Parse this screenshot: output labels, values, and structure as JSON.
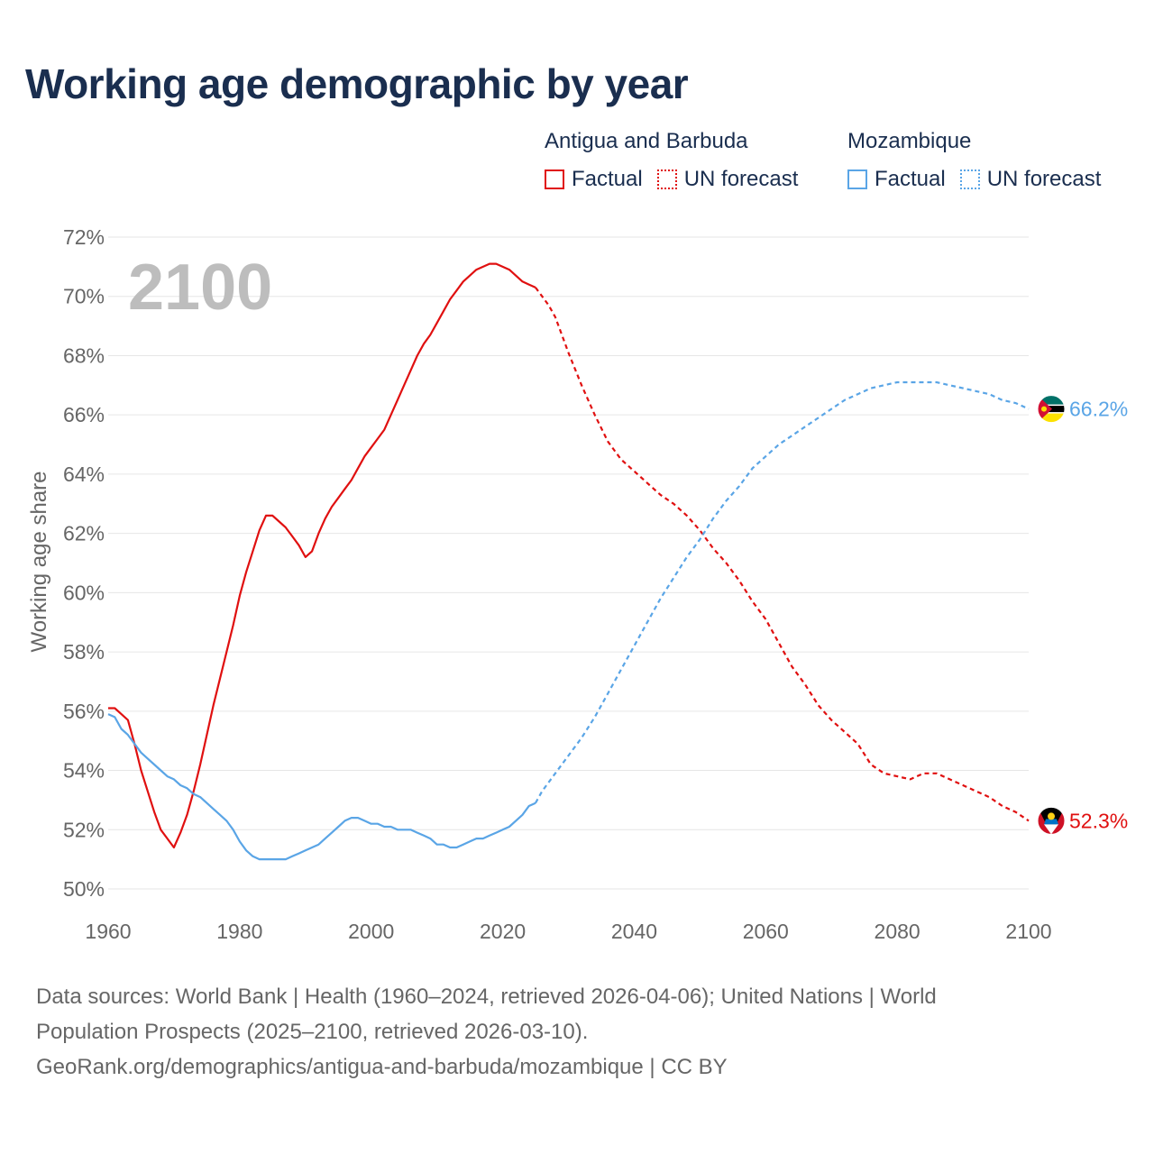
{
  "title": "Working age demographic by year",
  "legend": {
    "groups": [
      {
        "name": "Antigua and Barbuda",
        "color": "#e01010",
        "items": [
          {
            "label": "Factual",
            "style": "solid"
          },
          {
            "label": "UN forecast",
            "style": "dotted"
          }
        ]
      },
      {
        "name": "Mozambique",
        "color": "#5aa5e6",
        "items": [
          {
            "label": "Factual",
            "style": "solid"
          },
          {
            "label": "UN forecast",
            "style": "dotted"
          }
        ]
      }
    ]
  },
  "chart_data": {
    "type": "line",
    "title": "Working age demographic by year",
    "year_label": "2100",
    "xlabel": "",
    "ylabel": "Working age share",
    "xlim": [
      1960,
      2100
    ],
    "ylim": [
      50,
      72
    ],
    "xticks": [
      1960,
      1980,
      2000,
      2020,
      2040,
      2060,
      2080,
      2100
    ],
    "yticks": [
      50,
      52,
      54,
      56,
      58,
      60,
      62,
      64,
      66,
      68,
      70,
      72
    ],
    "ytick_suffix": "%",
    "grid": true,
    "forecast_start": 2025,
    "series": [
      {
        "name": "Antigua and Barbuda",
        "color": "#e01010",
        "end_label": "52.3%",
        "points": [
          [
            1960,
            56.1
          ],
          [
            1961,
            56.1
          ],
          [
            1962,
            55.9
          ],
          [
            1963,
            55.7
          ],
          [
            1964,
            54.9
          ],
          [
            1965,
            54.0
          ],
          [
            1966,
            53.3
          ],
          [
            1967,
            52.6
          ],
          [
            1968,
            52.0
          ],
          [
            1969,
            51.7
          ],
          [
            1970,
            51.4
          ],
          [
            1971,
            51.9
          ],
          [
            1972,
            52.5
          ],
          [
            1973,
            53.3
          ],
          [
            1974,
            54.2
          ],
          [
            1975,
            55.2
          ],
          [
            1976,
            56.2
          ],
          [
            1977,
            57.1
          ],
          [
            1978,
            58.0
          ],
          [
            1979,
            58.9
          ],
          [
            1980,
            59.9
          ],
          [
            1981,
            60.7
          ],
          [
            1982,
            61.4
          ],
          [
            1983,
            62.1
          ],
          [
            1984,
            62.6
          ],
          [
            1985,
            62.6
          ],
          [
            1986,
            62.4
          ],
          [
            1987,
            62.2
          ],
          [
            1988,
            61.9
          ],
          [
            1989,
            61.6
          ],
          [
            1990,
            61.2
          ],
          [
            1991,
            61.4
          ],
          [
            1992,
            62.0
          ],
          [
            1993,
            62.5
          ],
          [
            1994,
            62.9
          ],
          [
            1995,
            63.2
          ],
          [
            1996,
            63.5
          ],
          [
            1997,
            63.8
          ],
          [
            1998,
            64.2
          ],
          [
            1999,
            64.6
          ],
          [
            2000,
            64.9
          ],
          [
            2001,
            65.2
          ],
          [
            2002,
            65.5
          ],
          [
            2003,
            66.0
          ],
          [
            2004,
            66.5
          ],
          [
            2005,
            67.0
          ],
          [
            2006,
            67.5
          ],
          [
            2007,
            68.0
          ],
          [
            2008,
            68.4
          ],
          [
            2009,
            68.7
          ],
          [
            2010,
            69.1
          ],
          [
            2011,
            69.5
          ],
          [
            2012,
            69.9
          ],
          [
            2013,
            70.2
          ],
          [
            2014,
            70.5
          ],
          [
            2015,
            70.7
          ],
          [
            2016,
            70.9
          ],
          [
            2017,
            71.0
          ],
          [
            2018,
            71.1
          ],
          [
            2019,
            71.1
          ],
          [
            2020,
            71.0
          ],
          [
            2021,
            70.9
          ],
          [
            2022,
            70.7
          ],
          [
            2023,
            70.5
          ],
          [
            2024,
            70.4
          ],
          [
            2025,
            70.3
          ],
          [
            2026,
            70.0
          ],
          [
            2027,
            69.7
          ],
          [
            2028,
            69.3
          ],
          [
            2029,
            68.7
          ],
          [
            2030,
            68.1
          ],
          [
            2032,
            67.0
          ],
          [
            2034,
            66.0
          ],
          [
            2036,
            65.1
          ],
          [
            2038,
            64.5
          ],
          [
            2040,
            64.1
          ],
          [
            2042,
            63.7
          ],
          [
            2044,
            63.3
          ],
          [
            2046,
            63.0
          ],
          [
            2048,
            62.6
          ],
          [
            2050,
            62.1
          ],
          [
            2052,
            61.5
          ],
          [
            2054,
            61.0
          ],
          [
            2056,
            60.4
          ],
          [
            2058,
            59.7
          ],
          [
            2060,
            59.1
          ],
          [
            2062,
            58.3
          ],
          [
            2064,
            57.5
          ],
          [
            2066,
            56.9
          ],
          [
            2068,
            56.2
          ],
          [
            2070,
            55.7
          ],
          [
            2072,
            55.3
          ],
          [
            2074,
            54.9
          ],
          [
            2076,
            54.2
          ],
          [
            2078,
            53.9
          ],
          [
            2080,
            53.8
          ],
          [
            2082,
            53.7
          ],
          [
            2084,
            53.9
          ],
          [
            2086,
            53.9
          ],
          [
            2088,
            53.7
          ],
          [
            2090,
            53.5
          ],
          [
            2092,
            53.3
          ],
          [
            2094,
            53.1
          ],
          [
            2096,
            52.8
          ],
          [
            2098,
            52.6
          ],
          [
            2100,
            52.3
          ]
        ]
      },
      {
        "name": "Mozambique",
        "color": "#5aa5e6",
        "end_label": "66.2%",
        "points": [
          [
            1960,
            55.9
          ],
          [
            1961,
            55.8
          ],
          [
            1962,
            55.4
          ],
          [
            1963,
            55.2
          ],
          [
            1964,
            54.9
          ],
          [
            1965,
            54.6
          ],
          [
            1966,
            54.4
          ],
          [
            1967,
            54.2
          ],
          [
            1968,
            54.0
          ],
          [
            1969,
            53.8
          ],
          [
            1970,
            53.7
          ],
          [
            1971,
            53.5
          ],
          [
            1972,
            53.4
          ],
          [
            1973,
            53.2
          ],
          [
            1974,
            53.1
          ],
          [
            1975,
            52.9
          ],
          [
            1976,
            52.7
          ],
          [
            1977,
            52.5
          ],
          [
            1978,
            52.3
          ],
          [
            1979,
            52.0
          ],
          [
            1980,
            51.6
          ],
          [
            1981,
            51.3
          ],
          [
            1982,
            51.1
          ],
          [
            1983,
            51.0
          ],
          [
            1984,
            51.0
          ],
          [
            1985,
            51.0
          ],
          [
            1986,
            51.0
          ],
          [
            1987,
            51.0
          ],
          [
            1988,
            51.1
          ],
          [
            1989,
            51.2
          ],
          [
            1990,
            51.3
          ],
          [
            1991,
            51.4
          ],
          [
            1992,
            51.5
          ],
          [
            1993,
            51.7
          ],
          [
            1994,
            51.9
          ],
          [
            1995,
            52.1
          ],
          [
            1996,
            52.3
          ],
          [
            1997,
            52.4
          ],
          [
            1998,
            52.4
          ],
          [
            1999,
            52.3
          ],
          [
            2000,
            52.2
          ],
          [
            2001,
            52.2
          ],
          [
            2002,
            52.1
          ],
          [
            2003,
            52.1
          ],
          [
            2004,
            52.0
          ],
          [
            2005,
            52.0
          ],
          [
            2006,
            52.0
          ],
          [
            2007,
            51.9
          ],
          [
            2008,
            51.8
          ],
          [
            2009,
            51.7
          ],
          [
            2010,
            51.5
          ],
          [
            2011,
            51.5
          ],
          [
            2012,
            51.4
          ],
          [
            2013,
            51.4
          ],
          [
            2014,
            51.5
          ],
          [
            2015,
            51.6
          ],
          [
            2016,
            51.7
          ],
          [
            2017,
            51.7
          ],
          [
            2018,
            51.8
          ],
          [
            2019,
            51.9
          ],
          [
            2020,
            52.0
          ],
          [
            2021,
            52.1
          ],
          [
            2022,
            52.3
          ],
          [
            2023,
            52.5
          ],
          [
            2024,
            52.8
          ],
          [
            2025,
            52.9
          ],
          [
            2026,
            53.3
          ],
          [
            2028,
            53.9
          ],
          [
            2030,
            54.5
          ],
          [
            2032,
            55.1
          ],
          [
            2034,
            55.8
          ],
          [
            2036,
            56.6
          ],
          [
            2038,
            57.4
          ],
          [
            2040,
            58.2
          ],
          [
            2042,
            59.0
          ],
          [
            2044,
            59.8
          ],
          [
            2046,
            60.5
          ],
          [
            2048,
            61.2
          ],
          [
            2050,
            61.8
          ],
          [
            2052,
            62.5
          ],
          [
            2054,
            63.1
          ],
          [
            2056,
            63.6
          ],
          [
            2058,
            64.2
          ],
          [
            2060,
            64.6
          ],
          [
            2062,
            65.0
          ],
          [
            2064,
            65.3
          ],
          [
            2066,
            65.6
          ],
          [
            2068,
            65.9
          ],
          [
            2070,
            66.2
          ],
          [
            2072,
            66.5
          ],
          [
            2074,
            66.7
          ],
          [
            2076,
            66.9
          ],
          [
            2078,
            67.0
          ],
          [
            2080,
            67.1
          ],
          [
            2082,
            67.1
          ],
          [
            2084,
            67.1
          ],
          [
            2086,
            67.1
          ],
          [
            2088,
            67.0
          ],
          [
            2090,
            66.9
          ],
          [
            2092,
            66.8
          ],
          [
            2094,
            66.7
          ],
          [
            2096,
            66.5
          ],
          [
            2098,
            66.4
          ],
          [
            2100,
            66.2
          ]
        ]
      }
    ]
  },
  "footer": {
    "line1": "Data sources: World Bank | Health (1960–2024, retrieved 2026-04-06); United Nations | World",
    "line2": "Population Prospects (2025–2100, retrieved 2026-03-10).",
    "line3": "GeoRank.org/demographics/antigua-and-barbuda/mozambique | CC BY"
  }
}
